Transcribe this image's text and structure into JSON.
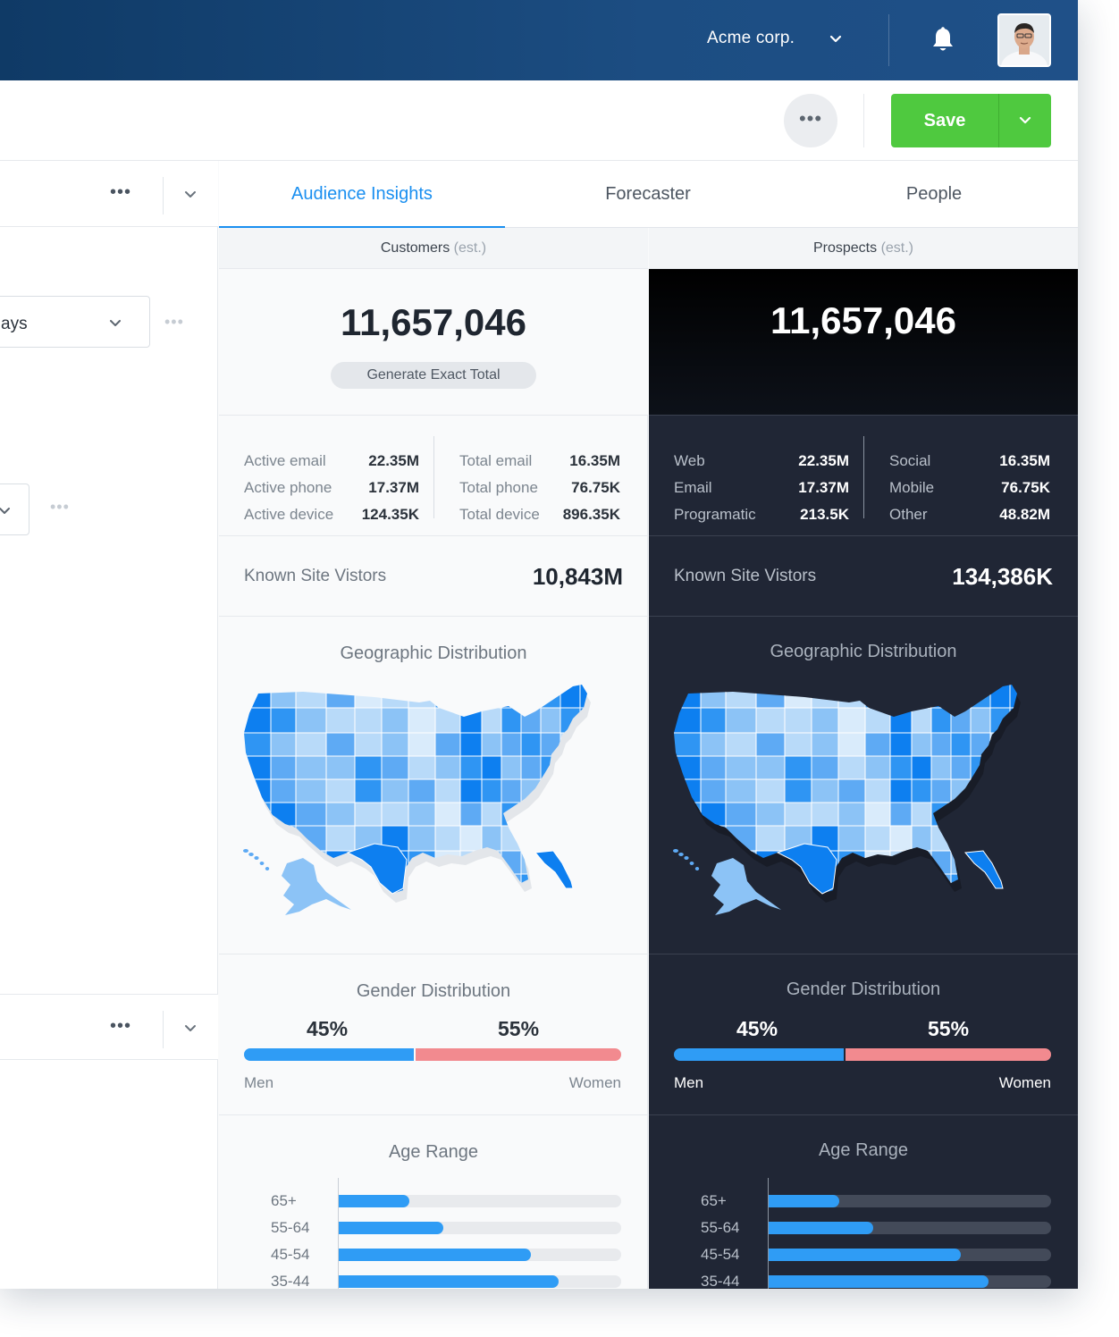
{
  "header": {
    "org_name": "Acme corp.",
    "bar_color": "#1c4d82"
  },
  "toolbar": {
    "more_label": "•••",
    "save_label": "Save",
    "save_color": "#4fc93f"
  },
  "left_panel": {
    "more_label": "•••",
    "select_value": "ays"
  },
  "tabs": [
    {
      "label": "Audience Insights",
      "active": true
    },
    {
      "label": "Forecaster",
      "active": false
    },
    {
      "label": "People",
      "active": false
    }
  ],
  "customers": {
    "header": "Customers",
    "est": "(est.)",
    "total": "11,657,046",
    "exact_button": "Generate Exact Total",
    "stats_left": [
      {
        "label": "Active email",
        "value": "22.35M"
      },
      {
        "label": "Active phone",
        "value": "17.37M"
      },
      {
        "label": "Active device",
        "value": "124.35K"
      }
    ],
    "stats_right": [
      {
        "label": "Total email",
        "value": "16.35M"
      },
      {
        "label": "Total phone",
        "value": "76.75K"
      },
      {
        "label": "Total device",
        "value": "896.35K"
      }
    ],
    "known_label": "Known Site Vistors",
    "known_value": "10,843M",
    "geo_title": "Geographic Distribution",
    "gender_title": "Gender Distribution",
    "men_pct": "45%",
    "women_pct": "55%",
    "men_share": 45,
    "men_label": "Men",
    "women_label": "Women",
    "age_title": "Age Range",
    "ages": [
      {
        "label": "65+",
        "value": 25
      },
      {
        "label": "55-64",
        "value": 37
      },
      {
        "label": "45-54",
        "value": 68
      },
      {
        "label": "35-44",
        "value": 78
      }
    ]
  },
  "prospects": {
    "header": "Prospects",
    "est": "(est.)",
    "total": "11,657,046",
    "stats_left": [
      {
        "label": "Web",
        "value": "22.35M"
      },
      {
        "label": "Email",
        "value": "17.37M"
      },
      {
        "label": "Programatic",
        "value": "213.5K"
      }
    ],
    "stats_right": [
      {
        "label": "Social",
        "value": "16.35M"
      },
      {
        "label": "Mobile",
        "value": "76.75K"
      },
      {
        "label": "Other",
        "value": "48.82M"
      }
    ],
    "known_label": "Known Site Vistors",
    "known_value": "134,386K",
    "geo_title": "Geographic Distribution",
    "gender_title": "Gender Distribution",
    "men_pct": "45%",
    "women_pct": "55%",
    "men_share": 45,
    "men_label": "Men",
    "women_label": "Women",
    "age_title": "Age Range",
    "ages": [
      {
        "label": "65+",
        "value": 25
      },
      {
        "label": "55-64",
        "value": 37
      },
      {
        "label": "45-54",
        "value": 68
      },
      {
        "label": "35-44",
        "value": 78
      }
    ]
  },
  "colors": {
    "accent": "#1a8ff0",
    "men": "#2f9cf5",
    "women": "#f28a8f",
    "map_shades": [
      "#0d7ff0",
      "#2f95f3",
      "#5eaaf4",
      "#8cc3f6",
      "#b8daf9",
      "#d9ebfb"
    ]
  }
}
